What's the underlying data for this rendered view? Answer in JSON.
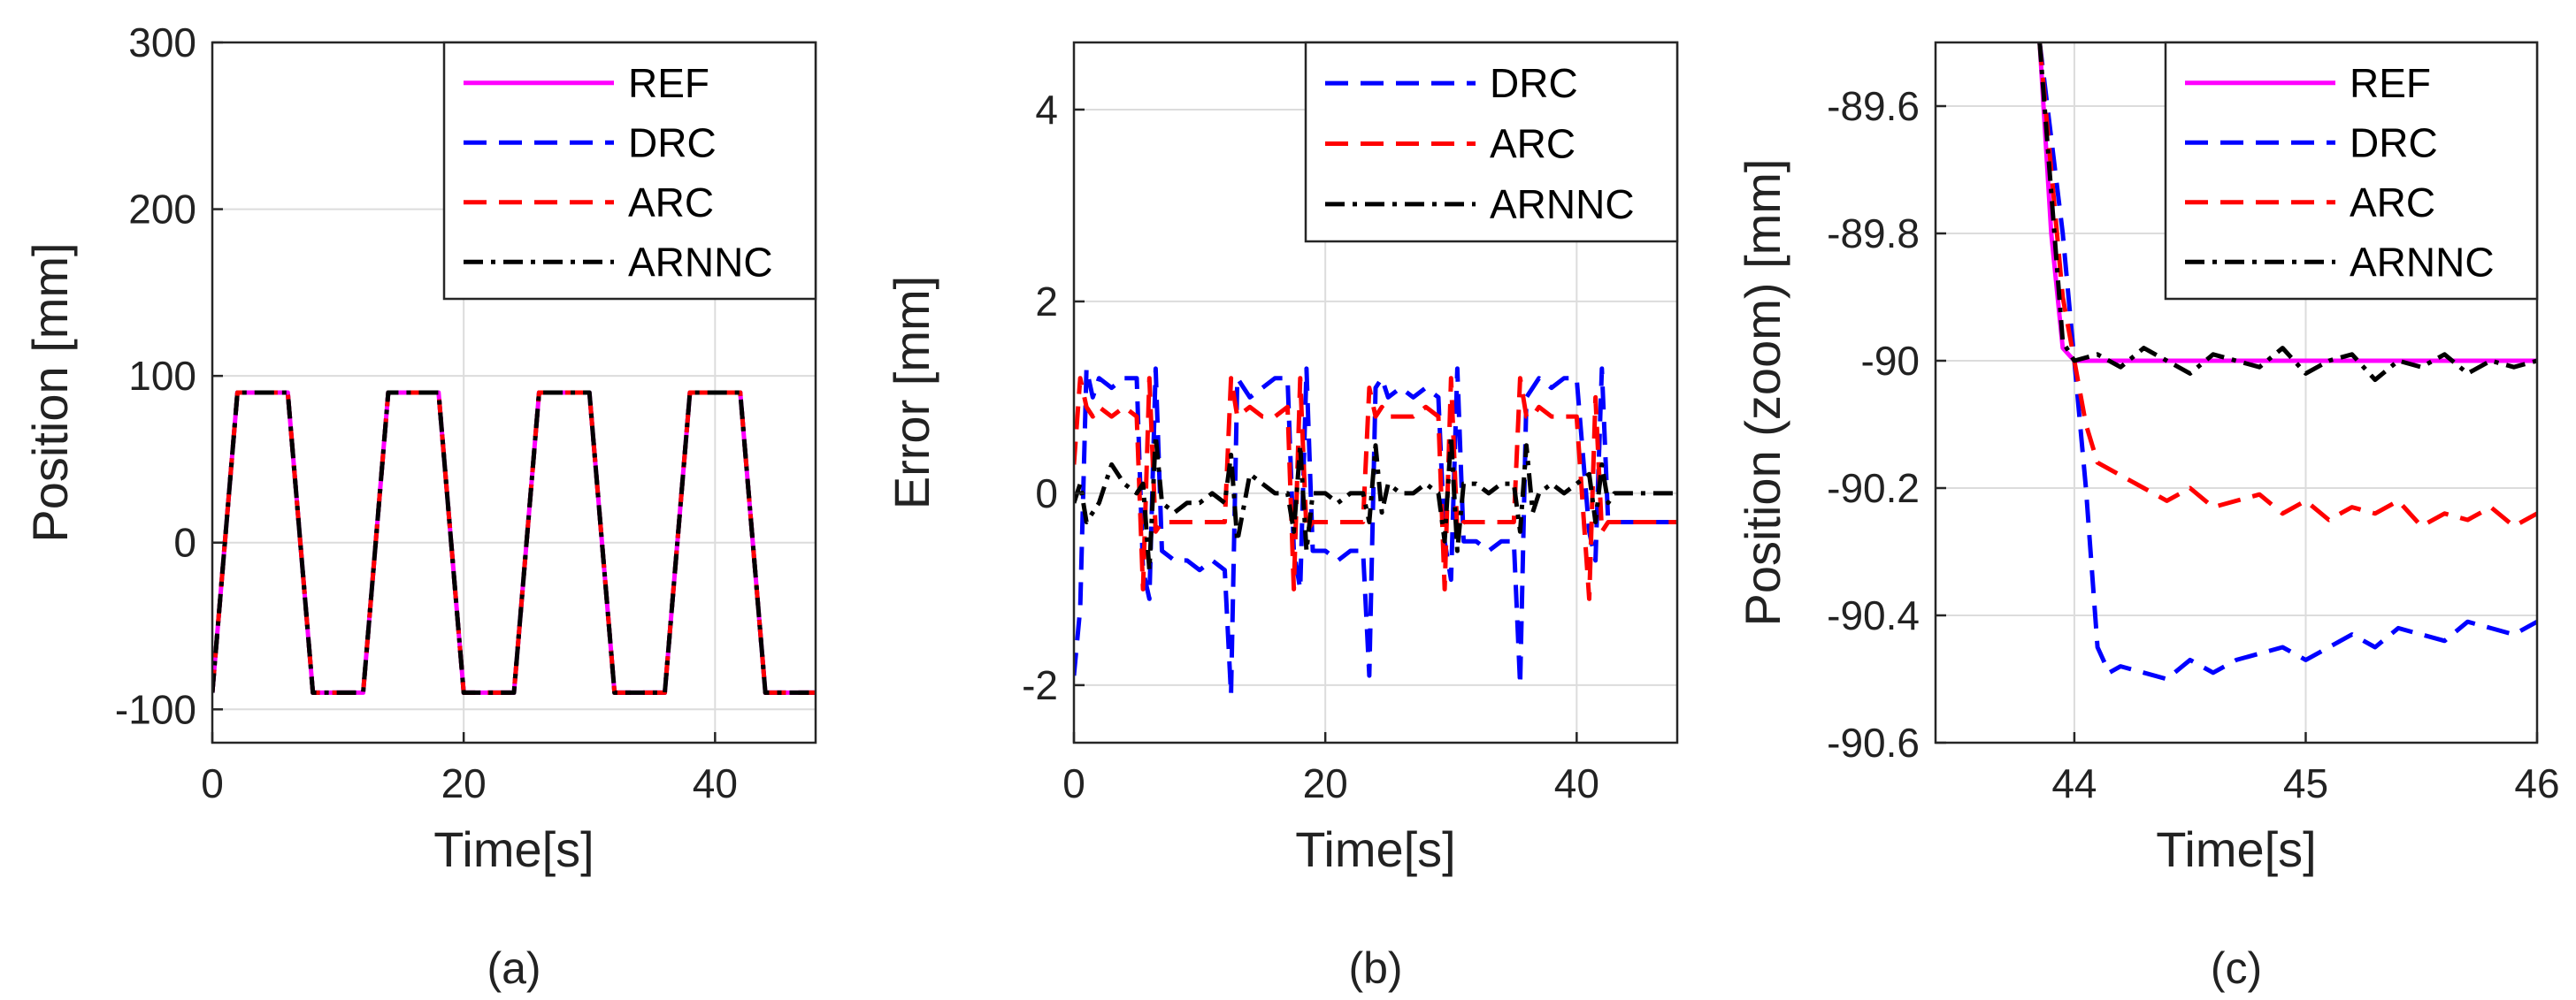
{
  "colors": {
    "REF": "#ff00ff",
    "DRC": "#0000ff",
    "ARC": "#ff0000",
    "ARNNC": "#000000"
  },
  "chart_data": [
    {
      "type": "line",
      "panel_label": "(a)",
      "xlabel": "Time[s]",
      "ylabel": "Position [mm]",
      "xlim": [
        0,
        48
      ],
      "ylim": [
        -120,
        300
      ],
      "xticks": [
        0,
        20,
        40
      ],
      "yticks": [
        -100,
        0,
        100,
        200,
        300
      ],
      "grid": true,
      "legend_position": "top-right",
      "series": [
        {
          "name": "REF",
          "style": "solid",
          "x": [
            0,
            2,
            6,
            8,
            12,
            14,
            18,
            20,
            24,
            26,
            30,
            32,
            36,
            38,
            42,
            44,
            48
          ],
          "y": [
            -90,
            90,
            90,
            -90,
            -90,
            90,
            90,
            -90,
            -90,
            90,
            90,
            -90,
            -90,
            90,
            90,
            -90,
            -90
          ]
        },
        {
          "name": "DRC",
          "style": "dashed",
          "x": [
            0,
            2,
            6,
            8,
            12,
            14,
            18,
            20,
            24,
            26,
            30,
            32,
            36,
            38,
            42,
            44,
            48
          ],
          "y": [
            -90,
            90,
            90,
            -90,
            -90,
            90,
            90,
            -90,
            -90,
            90,
            90,
            -90,
            -90,
            90,
            90,
            -90,
            -90
          ]
        },
        {
          "name": "ARC",
          "style": "dashed",
          "x": [
            0,
            2,
            6,
            8,
            12,
            14,
            18,
            20,
            24,
            26,
            30,
            32,
            36,
            38,
            42,
            44,
            48
          ],
          "y": [
            -90,
            90,
            90,
            -90,
            -90,
            90,
            90,
            -90,
            -90,
            90,
            90,
            -90,
            -90,
            90,
            90,
            -90,
            -90
          ]
        },
        {
          "name": "ARNNC",
          "style": "dashdot",
          "x": [
            0,
            2,
            6,
            8,
            12,
            14,
            18,
            20,
            24,
            26,
            30,
            32,
            36,
            38,
            42,
            44,
            48
          ],
          "y": [
            -90,
            90,
            90,
            -90,
            -90,
            90,
            90,
            -90,
            -90,
            90,
            90,
            -90,
            -90,
            90,
            90,
            -90,
            -90
          ]
        }
      ]
    },
    {
      "type": "line",
      "panel_label": "(b)",
      "xlabel": "Time[s]",
      "ylabel": "Error [mm]",
      "xlim": [
        0,
        48
      ],
      "ylim": [
        -2.6,
        4.7
      ],
      "xticks": [
        0,
        20,
        40
      ],
      "yticks": [
        -2,
        0,
        2,
        4
      ],
      "grid": true,
      "legend_position": "top-right",
      "series": [
        {
          "name": "DRC",
          "style": "dashed",
          "x": [
            0,
            0.5,
            1,
            1.5,
            2,
            3,
            4,
            5,
            5.5,
            6,
            6.5,
            7,
            8,
            9,
            10,
            11,
            12,
            12.5,
            13,
            14,
            15,
            16,
            17,
            17.5,
            18,
            18.5,
            19,
            20,
            21,
            22,
            23,
            23.5,
            24,
            24.5,
            25,
            26,
            27,
            28,
            29,
            29.5,
            30,
            30.5,
            31,
            32,
            33,
            34,
            35,
            35.5,
            36,
            36.5,
            37,
            38,
            39,
            40,
            41,
            41.5,
            42,
            42.5,
            43,
            44,
            45,
            46,
            47,
            48
          ],
          "y": [
            -1.9,
            -1.2,
            1.3,
            1.0,
            1.2,
            1.1,
            1.2,
            1.2,
            -0.8,
            -1.1,
            1.3,
            -0.6,
            -0.7,
            -0.7,
            -0.8,
            -0.7,
            -0.8,
            -2.1,
            1.2,
            1.0,
            1.1,
            1.2,
            1.2,
            -0.6,
            -1.0,
            1.3,
            -0.6,
            -0.6,
            -0.7,
            -0.6,
            -0.6,
            -1.9,
            1.1,
            1.2,
            1.0,
            1.1,
            1.0,
            1.1,
            1.0,
            -0.5,
            -0.9,
            1.3,
            -0.5,
            -0.5,
            -0.6,
            -0.5,
            -0.5,
            -2.0,
            1.0,
            1.1,
            1.2,
            1.1,
            1.2,
            1.2,
            -0.4,
            -0.7,
            1.3,
            -0.3,
            -0.3,
            -0.3,
            -0.3,
            -0.3,
            -0.3,
            -0.3
          ]
        },
        {
          "name": "ARC",
          "style": "dashed",
          "x": [
            0,
            0.5,
            1,
            1.5,
            2,
            3,
            4,
            5,
            5.5,
            6,
            6.5,
            7,
            8,
            9,
            10,
            11,
            12,
            12.5,
            13,
            14,
            15,
            16,
            17,
            17.5,
            18,
            18.5,
            19,
            20,
            21,
            22,
            23,
            23.5,
            24,
            24.5,
            25,
            26,
            27,
            28,
            29,
            29.5,
            30,
            30.5,
            31,
            32,
            33,
            34,
            35,
            35.5,
            36,
            36.5,
            37,
            38,
            39,
            40,
            41,
            41.5,
            42,
            42.5,
            43,
            44,
            45,
            46,
            47,
            48
          ],
          "y": [
            0.3,
            1.2,
            0.9,
            0.8,
            0.9,
            0.8,
            0.9,
            0.8,
            -1.0,
            1.2,
            -0.4,
            -0.3,
            -0.3,
            -0.3,
            -0.3,
            -0.3,
            -0.3,
            1.2,
            0.8,
            0.9,
            0.8,
            0.8,
            0.9,
            -1.0,
            1.2,
            -0.4,
            -0.3,
            -0.3,
            -0.3,
            -0.3,
            -0.3,
            1.1,
            0.8,
            0.9,
            0.8,
            0.8,
            0.8,
            0.9,
            0.8,
            -1.0,
            1.2,
            -0.4,
            -0.3,
            -0.3,
            -0.3,
            -0.3,
            -0.3,
            1.2,
            0.8,
            0.8,
            0.9,
            0.8,
            0.8,
            0.8,
            -1.1,
            1.0,
            -0.4,
            -0.3,
            -0.3,
            -0.3,
            -0.3,
            -0.3,
            -0.3,
            -0.3
          ]
        },
        {
          "name": "ARNNC",
          "style": "dashdot",
          "x": [
            0,
            0.5,
            1,
            1.5,
            2,
            3,
            4,
            5,
            5.5,
            6,
            6.5,
            7,
            8,
            9,
            10,
            11,
            12,
            12.5,
            13,
            14,
            15,
            16,
            17,
            17.5,
            18,
            18.5,
            19,
            20,
            21,
            22,
            23,
            23.5,
            24,
            24.5,
            25,
            26,
            27,
            28,
            29,
            29.5,
            30,
            30.5,
            31,
            32,
            33,
            34,
            35,
            35.5,
            36,
            36.5,
            37,
            38,
            39,
            40,
            41,
            41.5,
            42,
            42.5,
            43,
            44,
            45,
            46,
            47,
            48
          ],
          "y": [
            -0.1,
            0.1,
            -0.3,
            -0.2,
            -0.1,
            0.3,
            0.1,
            0.0,
            0.1,
            -0.8,
            0.6,
            -0.1,
            -0.2,
            -0.1,
            -0.1,
            0.0,
            -0.1,
            0.4,
            -0.5,
            0.2,
            0.1,
            0.0,
            0.0,
            -0.4,
            0.5,
            -0.6,
            0.0,
            0.0,
            -0.1,
            0.0,
            0.0,
            -0.3,
            0.5,
            -0.2,
            0.1,
            0.0,
            0.0,
            0.1,
            0.0,
            -0.5,
            0.6,
            -0.6,
            0.1,
            0.1,
            0.0,
            0.1,
            0.1,
            -0.4,
            0.5,
            -0.2,
            0.0,
            0.1,
            0.0,
            0.1,
            0.2,
            -0.3,
            0.3,
            -0.1,
            0.0,
            0.0,
            0.0,
            0.0,
            0.0,
            0.0
          ]
        }
      ]
    },
    {
      "type": "line",
      "panel_label": "(c)",
      "xlabel": "Time[s]",
      "ylabel": "Position (zoom) [mm]",
      "xlim": [
        43.4,
        46
      ],
      "ylim": [
        -90.6,
        -89.5
      ],
      "xticks": [
        44,
        45,
        46
      ],
      "yticks": [
        -90.6,
        -90.4,
        -90.2,
        -90,
        -89.8,
        -89.6
      ],
      "grid": true,
      "legend_position": "top-right",
      "series": [
        {
          "name": "REF",
          "style": "solid",
          "x": [
            43.85,
            43.9,
            43.95,
            44.0,
            45.0,
            46.0
          ],
          "y": [
            -89.5,
            -89.8,
            -89.98,
            -90.0,
            -90.0,
            -90.0
          ]
        },
        {
          "name": "DRC",
          "style": "dashed",
          "x": [
            43.85,
            43.95,
            44.0,
            44.05,
            44.1,
            44.15,
            44.2,
            44.3,
            44.4,
            44.5,
            44.6,
            44.7,
            44.8,
            44.9,
            45.0,
            45.1,
            45.2,
            45.3,
            45.4,
            45.5,
            45.6,
            45.7,
            45.8,
            45.9,
            46.0
          ],
          "y": [
            -89.5,
            -89.8,
            -90.0,
            -90.2,
            -90.45,
            -90.49,
            -90.48,
            -90.49,
            -90.5,
            -90.47,
            -90.49,
            -90.47,
            -90.46,
            -90.45,
            -90.47,
            -90.45,
            -90.43,
            -90.45,
            -90.42,
            -90.43,
            -90.44,
            -90.41,
            -90.42,
            -90.43,
            -90.41
          ]
        },
        {
          "name": "ARC",
          "style": "dashed",
          "x": [
            43.85,
            43.95,
            44.0,
            44.05,
            44.1,
            44.2,
            44.3,
            44.4,
            44.5,
            44.6,
            44.7,
            44.8,
            44.9,
            45.0,
            45.1,
            45.2,
            45.3,
            45.4,
            45.5,
            45.6,
            45.7,
            45.8,
            45.9,
            46.0
          ],
          "y": [
            -89.5,
            -89.9,
            -90.0,
            -90.1,
            -90.16,
            -90.18,
            -90.2,
            -90.22,
            -90.2,
            -90.23,
            -90.22,
            -90.21,
            -90.24,
            -90.22,
            -90.25,
            -90.23,
            -90.24,
            -90.22,
            -90.26,
            -90.24,
            -90.25,
            -90.23,
            -90.26,
            -90.24
          ]
        },
        {
          "name": "ARNNC",
          "style": "dashdot",
          "x": [
            43.85,
            43.95,
            44.0,
            44.1,
            44.2,
            44.3,
            44.4,
            44.5,
            44.6,
            44.7,
            44.8,
            44.9,
            45.0,
            45.1,
            45.2,
            45.3,
            45.4,
            45.5,
            45.6,
            45.7,
            45.8,
            45.9,
            46.0
          ],
          "y": [
            -89.5,
            -89.97,
            -90.0,
            -89.99,
            -90.01,
            -89.98,
            -90.0,
            -90.02,
            -89.99,
            -90.0,
            -90.01,
            -89.98,
            -90.02,
            -90.0,
            -89.99,
            -90.03,
            -90.0,
            -90.01,
            -89.99,
            -90.02,
            -90.0,
            -90.01,
            -90.0
          ]
        }
      ]
    }
  ]
}
